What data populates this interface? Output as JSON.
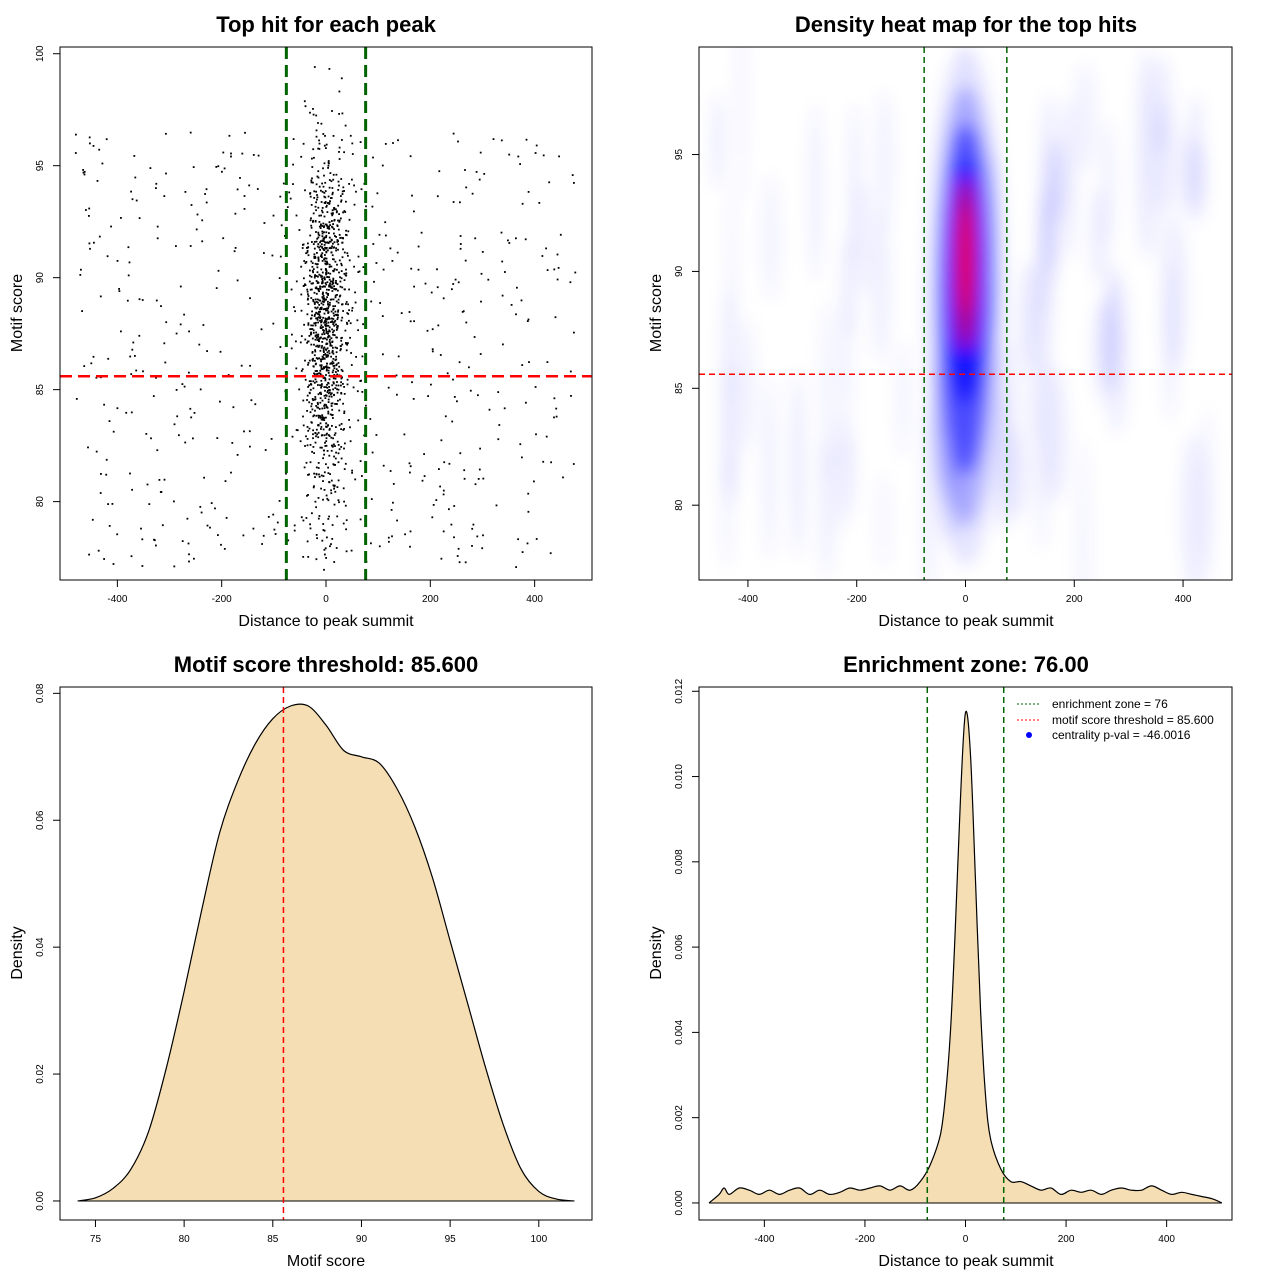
{
  "chart_data": [
    {
      "id": "scatter",
      "type": "scatter",
      "title": "Top hit for each peak",
      "xlabel": "Distance to peak summit",
      "ylabel": "Motif score",
      "xlim": [
        -510,
        510
      ],
      "ylim": [
        76.5,
        100.3
      ],
      "x_ticks": [
        -400,
        -200,
        0,
        200,
        400
      ],
      "y_ticks": [
        80,
        85,
        90,
        95,
        100
      ],
      "vlines": [
        -76,
        76
      ],
      "hline": 85.6,
      "colors": {
        "points": "#000000",
        "vlines": "#006400",
        "hline": "#ff0000"
      },
      "grid": false,
      "n_points": 1750
    },
    {
      "id": "heatmap",
      "type": "heatmap",
      "title": "Density heat map for the top hits",
      "xlabel": "Distance to peak summit",
      "ylabel": "Motif score",
      "xlim": [
        -490,
        490
      ],
      "ylim": [
        76.8,
        99.6
      ],
      "x_ticks": [
        -400,
        -200,
        0,
        200,
        400
      ],
      "y_ticks": [
        80,
        85,
        90,
        95
      ],
      "vlines": [
        -76,
        76
      ],
      "hline": 85.6,
      "colors": {
        "low": "#ffffff",
        "mid": "#0000ff",
        "high": "#ff0000",
        "vlines": "#006400",
        "hline": "#ff0000"
      },
      "grid": false
    },
    {
      "id": "score-density",
      "type": "area",
      "title": "Motif score threshold: 85.600",
      "xlabel": "Motif score",
      "ylabel": "Density",
      "xlim": [
        73,
        103
      ],
      "ylim": [
        -0.003,
        0.081
      ],
      "x_ticks": [
        75,
        80,
        85,
        90,
        95,
        100
      ],
      "y_ticks": [
        0.0,
        0.02,
        0.04,
        0.06,
        0.08
      ],
      "y_tick_labels": [
        "0.00",
        "0.02",
        "0.04",
        "0.06",
        "0.08"
      ],
      "vline": 85.6,
      "x": [
        74,
        75,
        76,
        77,
        78,
        79,
        80,
        81,
        82,
        83,
        84,
        85,
        86,
        87,
        88,
        89,
        90,
        91,
        92,
        93,
        94,
        95,
        96,
        97,
        98,
        99,
        100,
        101,
        102
      ],
      "values": [
        0.0,
        0.0005,
        0.002,
        0.005,
        0.011,
        0.021,
        0.033,
        0.046,
        0.058,
        0.066,
        0.072,
        0.076,
        0.078,
        0.078,
        0.075,
        0.071,
        0.07,
        0.069,
        0.065,
        0.059,
        0.051,
        0.041,
        0.031,
        0.021,
        0.012,
        0.005,
        0.0015,
        0.0003,
        0.0
      ],
      "colors": {
        "fill": "#f5deb3",
        "line": "#000000",
        "vline": "#ff0000"
      },
      "grid": false
    },
    {
      "id": "distance-density",
      "type": "area",
      "title": "Enrichment zone: 76.00",
      "xlabel": "Distance to peak summit",
      "ylabel": "Density",
      "xlim": [
        -530,
        530
      ],
      "ylim": [
        -0.0004,
        0.0121
      ],
      "x_ticks": [
        -400,
        -200,
        0,
        200,
        400
      ],
      "y_ticks": [
        0.0,
        0.002,
        0.004,
        0.006,
        0.008,
        0.01,
        0.012
      ],
      "y_tick_labels": [
        "0.000",
        "0.002",
        "0.004",
        "0.006",
        "0.008",
        "0.010",
        "0.012"
      ],
      "vlines": [
        -76,
        76
      ],
      "x": [
        -510,
        -490,
        -480,
        -470,
        -450,
        -430,
        -410,
        -390,
        -370,
        -350,
        -330,
        -310,
        -290,
        -270,
        -250,
        -230,
        -210,
        -190,
        -170,
        -150,
        -130,
        -110,
        -90,
        -70,
        -50,
        -40,
        -30,
        -20,
        -10,
        0,
        10,
        20,
        30,
        40,
        50,
        70,
        90,
        110,
        130,
        150,
        170,
        190,
        210,
        230,
        250,
        270,
        290,
        310,
        330,
        350,
        370,
        390,
        410,
        430,
        450,
        470,
        490,
        510
      ],
      "values": [
        0.0,
        0.0002,
        0.00035,
        0.0002,
        0.00035,
        0.0003,
        0.0002,
        0.0003,
        0.0002,
        0.0003,
        0.00035,
        0.0002,
        0.0003,
        0.0002,
        0.00025,
        0.00035,
        0.0003,
        0.00035,
        0.0004,
        0.0003,
        0.0004,
        0.0003,
        0.0005,
        0.0009,
        0.0016,
        0.0025,
        0.004,
        0.0065,
        0.0095,
        0.0115,
        0.0105,
        0.0075,
        0.0045,
        0.0025,
        0.0015,
        0.0008,
        0.0005,
        0.0005,
        0.0004,
        0.0003,
        0.00035,
        0.0002,
        0.0003,
        0.00025,
        0.0003,
        0.0002,
        0.0003,
        0.00035,
        0.0003,
        0.0003,
        0.0004,
        0.0003,
        0.0002,
        0.00025,
        0.0002,
        0.00015,
        0.0001,
        0.0
      ],
      "colors": {
        "fill": "#f5deb3",
        "line": "#000000",
        "vline": "#006400"
      },
      "grid": false,
      "legend_position": "top-right",
      "legend": [
        {
          "label": "enrichment zone = 76",
          "color": "#006400",
          "marker": "dotted-line"
        },
        {
          "label": "motif score threshold = 85.600",
          "color": "#ff0000",
          "marker": "dotted-line"
        },
        {
          "label": "centrality p-val = -46.0016",
          "color": "#0000ff",
          "marker": "point"
        }
      ]
    }
  ]
}
